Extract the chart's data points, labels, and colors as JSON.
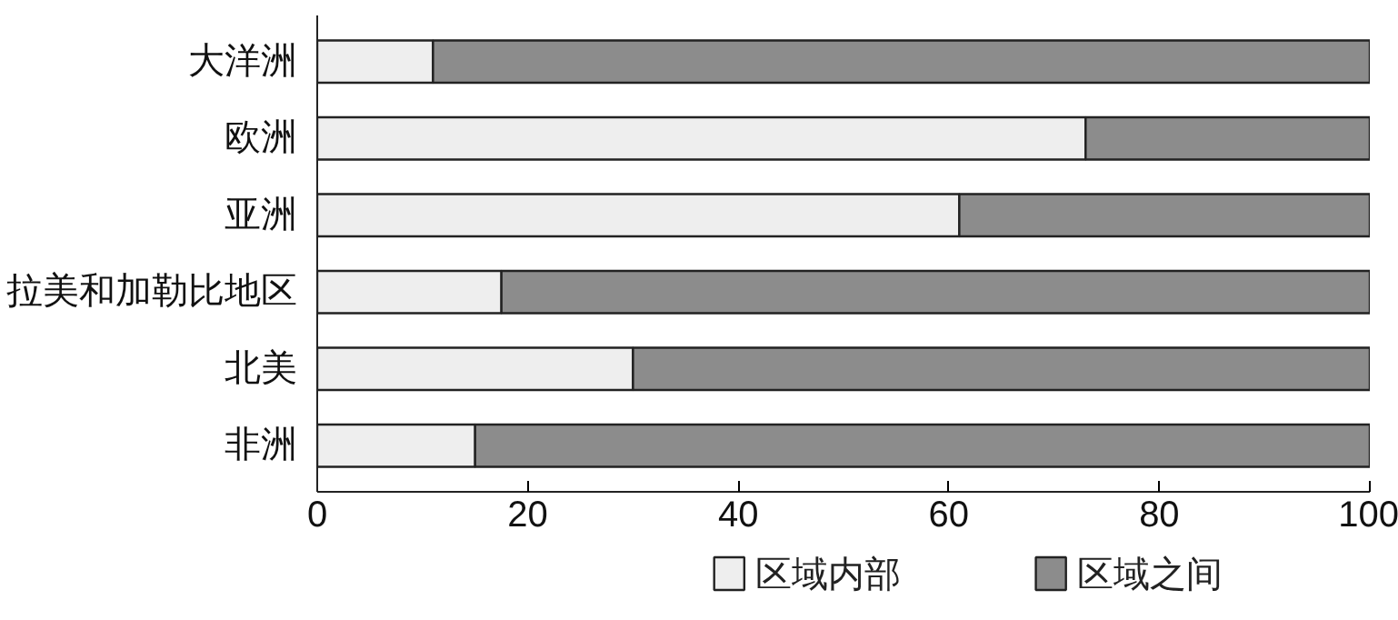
{
  "chart_data": {
    "type": "bar",
    "orientation": "horizontal",
    "stacked": true,
    "categories": [
      "大洋洲",
      "欧洲",
      "亚洲",
      "拉美和加勒比地区",
      "北美",
      "非洲"
    ],
    "series": [
      {
        "name": "区域内部",
        "color": "#eeeeee",
        "values": [
          11,
          73,
          61,
          17.5,
          30,
          15
        ]
      },
      {
        "name": "区域之间",
        "color": "#8c8c8c",
        "values": [
          89,
          27,
          39,
          82.5,
          70,
          85
        ]
      }
    ],
    "xlim": [
      0,
      100
    ],
    "xticks": [
      0,
      20,
      40,
      60,
      80,
      100
    ],
    "grid": false,
    "legend": "bottom"
  }
}
